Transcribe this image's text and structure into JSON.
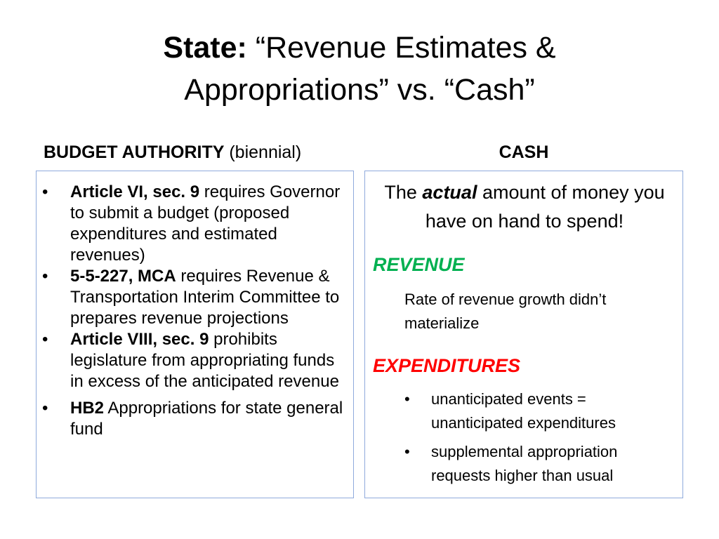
{
  "title": {
    "bold": "State:",
    "line1_rest": "“Revenue Estimates &",
    "line2": "Appropriations” vs. “Cash”"
  },
  "left_column": {
    "heading_bold": "BUDGET AUTHORITY",
    "heading_rest": "(biennial)",
    "items": [
      {
        "bold": "Article VI, sec. 9",
        "text": "requires Governor to submit a budget (proposed expenditures and estimated revenues)"
      },
      {
        "bold": "5-5-227, MCA",
        "text": "requires Revenue & Transportation Interim Committee to prepares revenue projections"
      },
      {
        "bold": "Article VIII, sec. 9",
        "text": "prohibits legislature from appropriating funds in excess of the anticipated revenue"
      },
      {
        "bold": "HB2",
        "text": "Appropriations for state general fund"
      }
    ]
  },
  "right_column": {
    "heading": "CASH",
    "lead_before": "The",
    "lead_emphasis": "actual",
    "lead_after": "amount of money you have on hand to spend!",
    "revenue": {
      "heading": "REVENUE",
      "text": "Rate of revenue growth didn’t materialize"
    },
    "expenditures": {
      "heading": "EXPENDITURES",
      "items": [
        "unanticipated events = unanticipated expenditures",
        "supplemental appropriation requests higher than usual"
      ]
    }
  },
  "bullet_glyph": "•",
  "colors": {
    "box_border": "#8faadc",
    "revenue_heading": "#00b050",
    "expenditures_heading": "#ff0000"
  }
}
